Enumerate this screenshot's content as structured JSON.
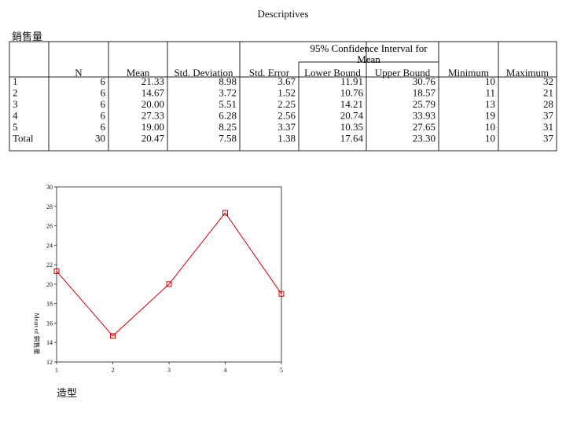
{
  "title": "Descriptives",
  "table": {
    "caption": "銷售量",
    "span_label": "95% Confidence Interval for Mean",
    "columns": [
      "N",
      "Mean",
      "Std. Deviation",
      "Std. Error",
      "Lower Bound",
      "Upper Bound",
      "Minimum",
      "Maximum"
    ],
    "rows": [
      {
        "label": "1",
        "cells": [
          "6",
          "21.33",
          "8.98",
          "3.67",
          "11.91",
          "30.76",
          "10",
          "32"
        ]
      },
      {
        "label": "2",
        "cells": [
          "6",
          "14.67",
          "3.72",
          "1.52",
          "10.76",
          "18.57",
          "11",
          "21"
        ]
      },
      {
        "label": "3",
        "cells": [
          "6",
          "20.00",
          "5.51",
          "2.25",
          "14.21",
          "25.79",
          "13",
          "28"
        ]
      },
      {
        "label": "4",
        "cells": [
          "6",
          "27.33",
          "6.28",
          "2.56",
          "20.74",
          "33.93",
          "19",
          "37"
        ]
      },
      {
        "label": "5",
        "cells": [
          "6",
          "19.00",
          "8.25",
          "3.37",
          "10.35",
          "27.65",
          "10",
          "31"
        ]
      },
      {
        "label": "Total",
        "cells": [
          "30",
          "20.47",
          "7.58",
          "1.38",
          "17.64",
          "23.30",
          "10",
          "37"
        ]
      }
    ]
  },
  "chart_data": {
    "type": "line",
    "x_label": "造型",
    "y_label": "Mean of 銷售量",
    "x": [
      1,
      2,
      3,
      4,
      5
    ],
    "values": [
      21.33,
      14.67,
      20.0,
      27.33,
      19.0
    ],
    "color": "#cc0000",
    "xlim": [
      1,
      5
    ],
    "xticks": [
      1,
      2,
      3,
      4,
      5
    ],
    "ylim": [
      12,
      30
    ],
    "yticks": [
      12,
      14,
      16,
      18,
      20,
      22,
      24,
      26,
      28,
      30
    ]
  }
}
